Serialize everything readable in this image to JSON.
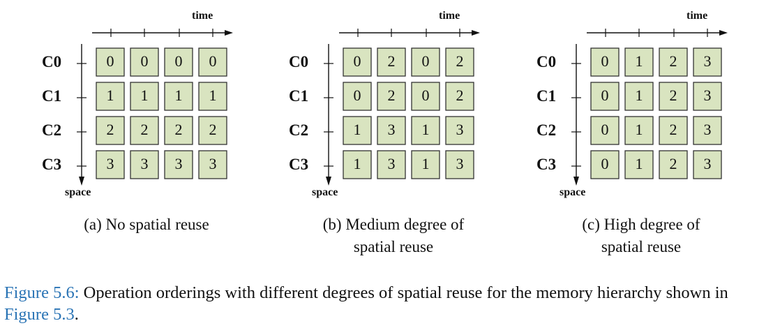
{
  "colors": {
    "cell_fill": "#d9e4c0",
    "cell_border": "#333333",
    "link": "#2a74b5"
  },
  "axes": {
    "time_label": "time",
    "space_label": "space"
  },
  "row_labels": [
    "C0",
    "C1",
    "C2",
    "C3"
  ],
  "panels": [
    {
      "caption": "(a) No spatial reuse",
      "grid": [
        [
          "0",
          "0",
          "0",
          "0"
        ],
        [
          "1",
          "1",
          "1",
          "1"
        ],
        [
          "2",
          "2",
          "2",
          "2"
        ],
        [
          "3",
          "3",
          "3",
          "3"
        ]
      ]
    },
    {
      "caption": "(b) Medium degree of spatial reuse",
      "grid": [
        [
          "0",
          "2",
          "0",
          "2"
        ],
        [
          "0",
          "2",
          "0",
          "2"
        ],
        [
          "1",
          "3",
          "1",
          "3"
        ],
        [
          "1",
          "3",
          "1",
          "3"
        ]
      ]
    },
    {
      "caption": "(c) High degree of spatial reuse",
      "grid": [
        [
          "0",
          "1",
          "2",
          "3"
        ],
        [
          "0",
          "1",
          "2",
          "3"
        ],
        [
          "0",
          "1",
          "2",
          "3"
        ],
        [
          "0",
          "1",
          "2",
          "3"
        ]
      ]
    }
  ],
  "figure_caption": {
    "label": "Figure 5.6:",
    "text_before_ref": " Operation orderings with different degrees of spatial reuse for the memory hierarchy shown in ",
    "ref": "Figure 5.3",
    "text_after_ref": "."
  }
}
